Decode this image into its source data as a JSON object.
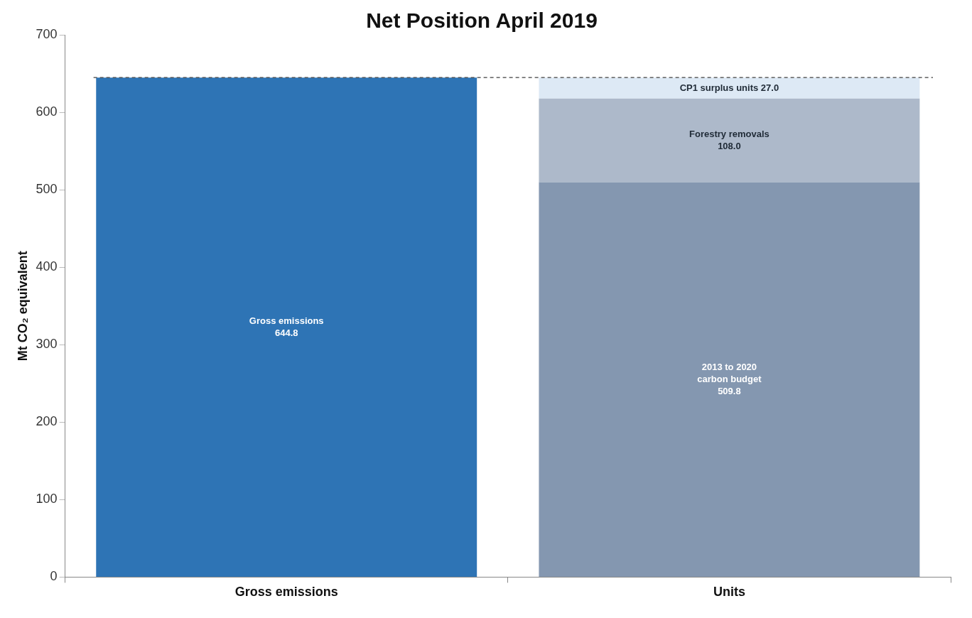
{
  "chart_data": {
    "type": "bar",
    "title": "Net Position April 2019",
    "ylabel": "Mt CO₂ equivalent",
    "categories": [
      "Gross emissions",
      "Units"
    ],
    "stacked": true,
    "series": [
      {
        "name": "Gross emissions",
        "color": "#2e74b5",
        "values": [
          644.8,
          null
        ],
        "value_labels": [
          "644.8",
          null
        ]
      },
      {
        "name": "2013 to 2020 carbon budget",
        "color": "#8497b0",
        "values": [
          null,
          509.8
        ],
        "value_labels": [
          null,
          "509.8"
        ]
      },
      {
        "name": "Forestry removals",
        "color": "#adb9ca",
        "values": [
          null,
          108.0
        ],
        "value_labels": [
          null,
          "108.0"
        ]
      },
      {
        "name": "CP1 surplus units",
        "color": "#dde9f5",
        "values": [
          null,
          27.0
        ],
        "value_labels": [
          null,
          "27.0"
        ]
      }
    ],
    "ylim": [
      0,
      700
    ],
    "yticks": [
      0,
      100,
      200,
      300,
      400,
      500,
      600,
      700
    ],
    "grid": false,
    "legend": false,
    "ref_lines": [
      {
        "axis": "y",
        "value": 644.8,
        "label": null,
        "color": "#404040",
        "line_style": "dashed"
      }
    ]
  }
}
